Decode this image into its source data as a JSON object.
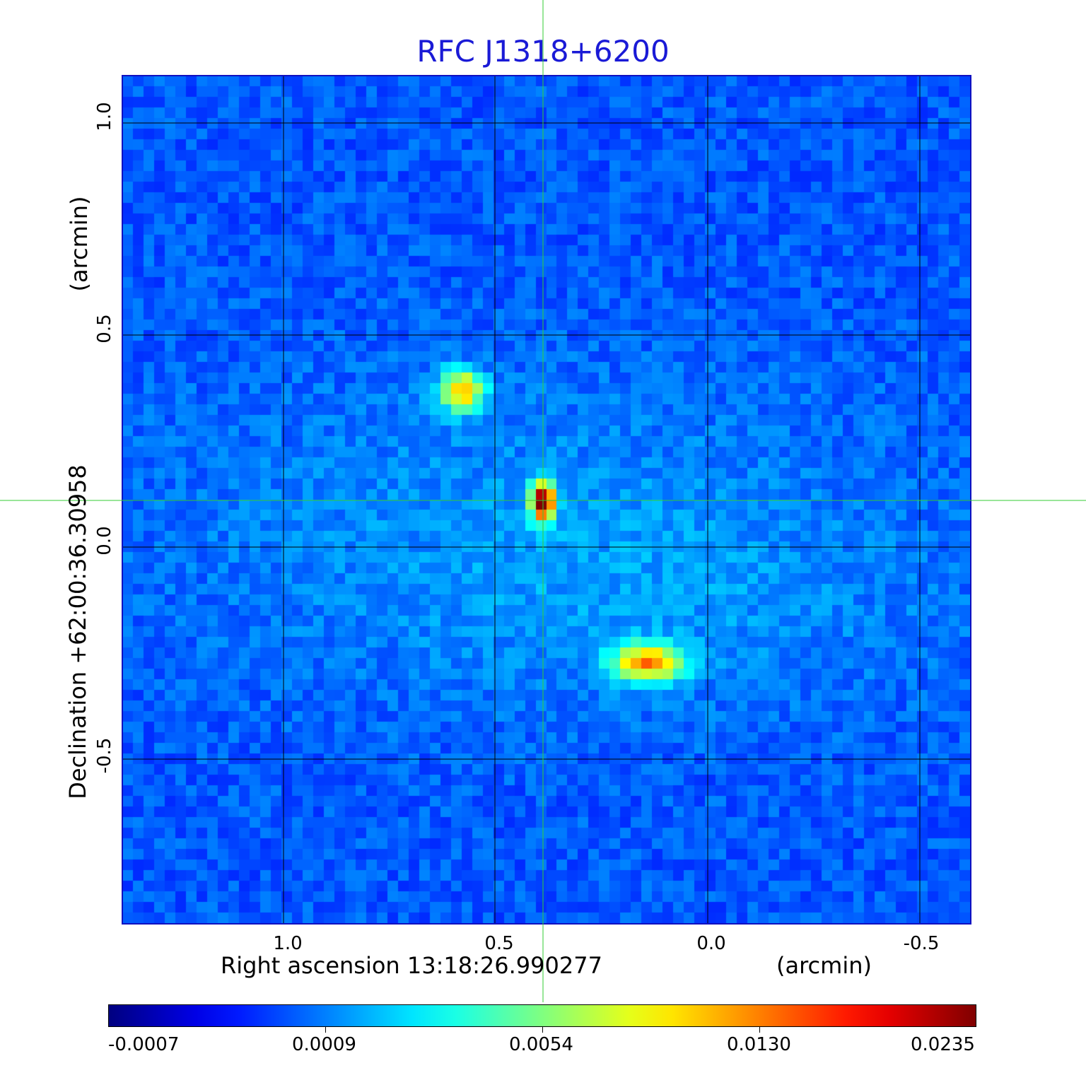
{
  "title": "RFC J1318+6200",
  "x_axis": {
    "label": "Right ascension  13:18:26.990277",
    "unit": "(arcmin)",
    "ticks": [
      "1.0",
      "0.5",
      "0.0",
      "-0.5"
    ]
  },
  "y_axis": {
    "label": "Declination  +62:00:36.30958",
    "unit": "(arcmin)",
    "ticks": [
      "1.0",
      "0.5",
      "0.0",
      "-0.5"
    ]
  },
  "colorbar": {
    "ticks": [
      "-0.0007",
      "0.0009",
      "0.0054",
      "0.0130",
      "0.0235"
    ],
    "colormap": "jet"
  },
  "colors": {
    "title": "#1a1ad6",
    "crosshair": "#33cc33",
    "grid": "#000000",
    "frame": "#1010c0"
  }
}
